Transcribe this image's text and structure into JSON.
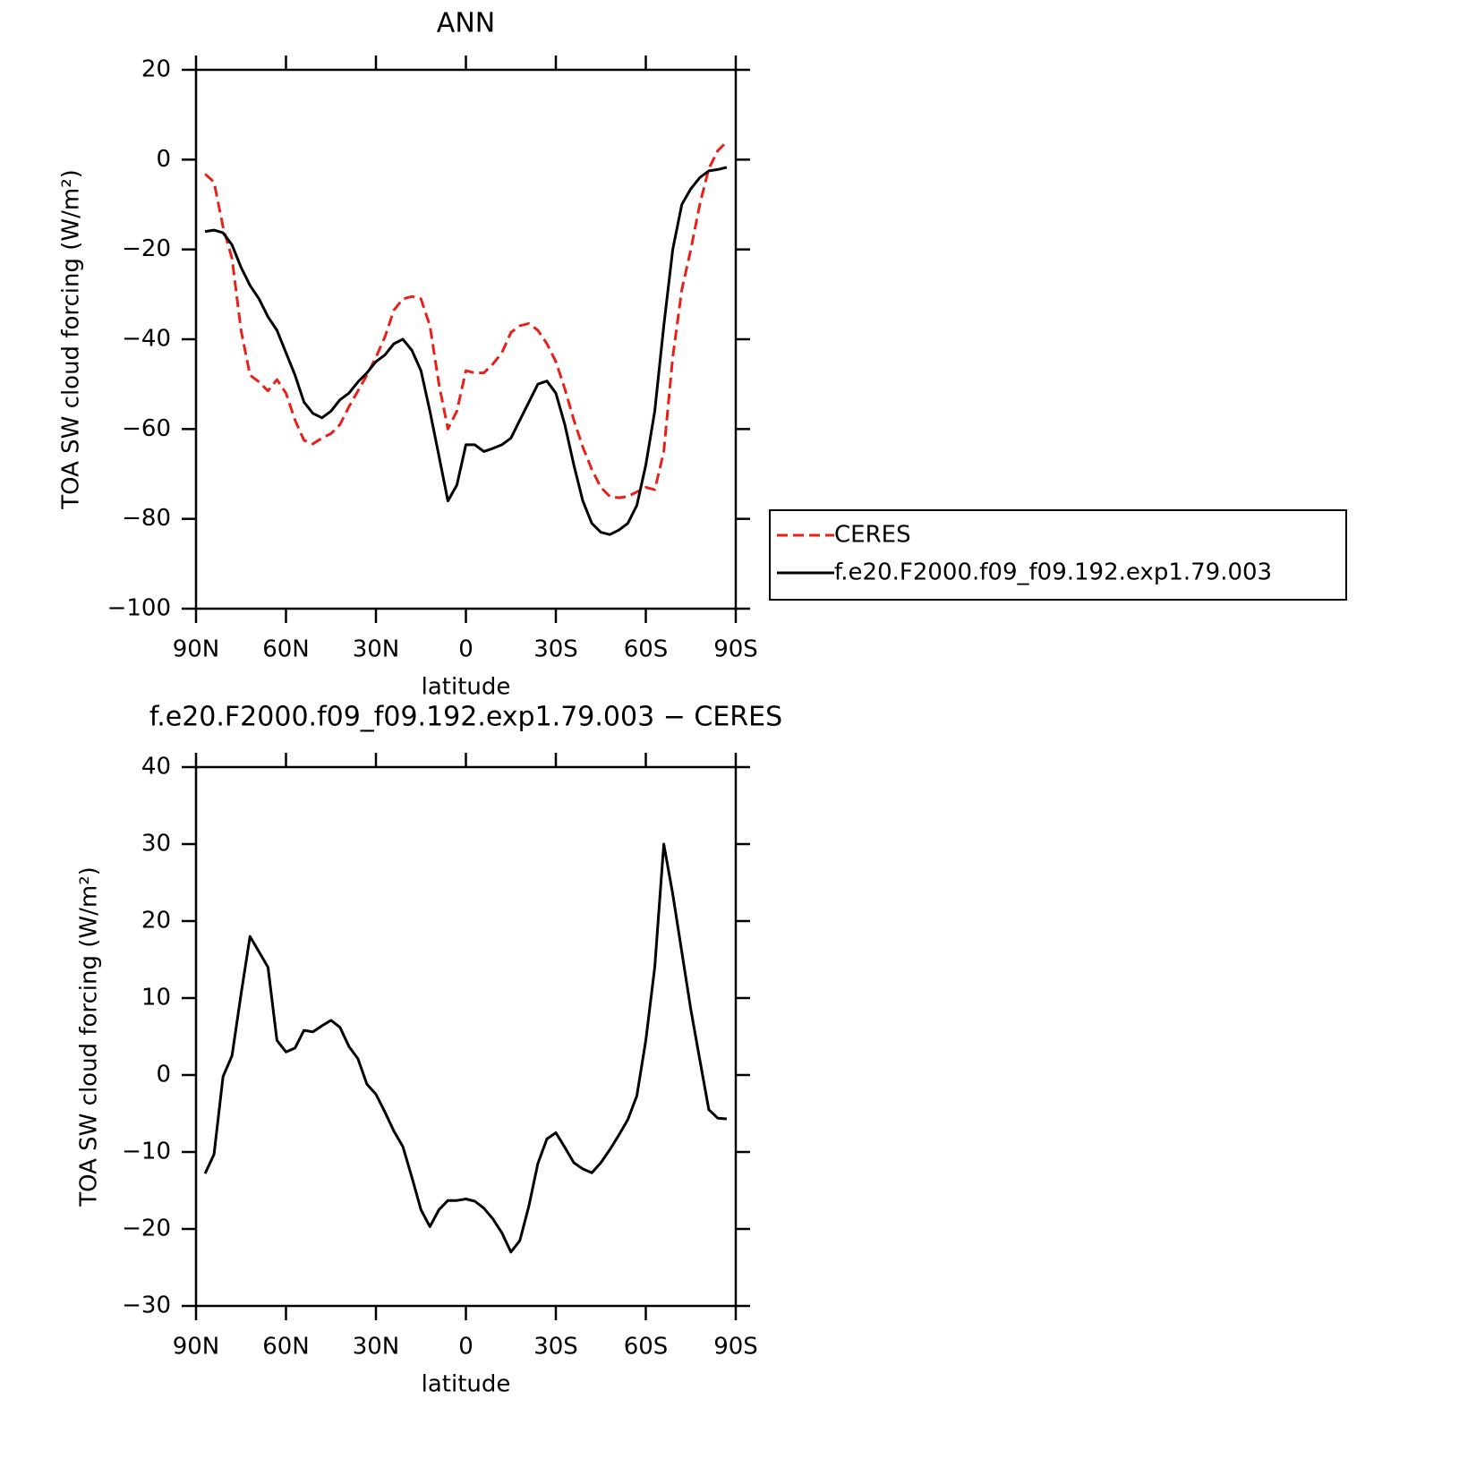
{
  "chart_data": [
    {
      "type": "line",
      "title": "ANN",
      "xlabel": "latitude",
      "ylabel": "TOA SW cloud forcing (W/m²)",
      "x": [
        87,
        84,
        81,
        78,
        75,
        72,
        69,
        66,
        63,
        60,
        57,
        54,
        51,
        48,
        45,
        42,
        39,
        36,
        33,
        30,
        27,
        24,
        21,
        18,
        15,
        12,
        9,
        6,
        3,
        0,
        -3,
        -6,
        -9,
        -12,
        -15,
        -18,
        -21,
        -24,
        -27,
        -30,
        -33,
        -36,
        -39,
        -42,
        -45,
        -48,
        -51,
        -54,
        -57,
        -60,
        -63,
        -66,
        -69,
        -72,
        -75,
        -78,
        -81,
        -84,
        -87
      ],
      "series": [
        {
          "name": "CERES",
          "color": "#e8201a",
          "dashed": true,
          "values": [
            -3.2,
            -5,
            -15,
            -22,
            -38,
            -48,
            -49.5,
            -51.5,
            -49,
            -52,
            -58,
            -62.5,
            -63.3,
            -62,
            -61,
            -59,
            -55,
            -51.5,
            -48,
            -44,
            -39.5,
            -33.5,
            -31,
            -30.5,
            -31,
            -37,
            -50,
            -60,
            -56,
            -47,
            -47.5,
            -47.5,
            -45.5,
            -43,
            -38.5,
            -37,
            -36.5,
            -38,
            -41,
            -45,
            -51,
            -58,
            -64,
            -69,
            -73,
            -75,
            -75.3,
            -75,
            -74,
            -73,
            -73.5,
            -65,
            -44,
            -29,
            -20,
            -10,
            -2,
            2,
            4
          ]
        },
        {
          "name": "f.e20.F2000.f09_f09.192.exp1.79.003",
          "color": "#000000",
          "dashed": false,
          "values": [
            -16,
            -15.7,
            -16.3,
            -19,
            -24,
            -28,
            -31,
            -35,
            -38,
            -43,
            -48,
            -54,
            -56.5,
            -57.5,
            -56,
            -53.5,
            -52,
            -49.5,
            -47.5,
            -45,
            -43.5,
            -41,
            -40,
            -42.5,
            -47,
            -56,
            -66,
            -76,
            -72.5,
            -63.5,
            -63.5,
            -65,
            -64.3,
            -63.5,
            -62,
            -58,
            -54,
            -50,
            -49.3,
            -52,
            -59,
            -68,
            -76,
            -81,
            -83,
            -83.5,
            -82.5,
            -81,
            -77,
            -68,
            -56,
            -37,
            -20,
            -10,
            -6.5,
            -4,
            -2.5,
            -2.2,
            -1.7
          ]
        }
      ],
      "xlim": [
        90,
        -90
      ],
      "xticks": [
        {
          "value": 90,
          "label": "90N"
        },
        {
          "value": 60,
          "label": "60N"
        },
        {
          "value": 30,
          "label": "30N"
        },
        0,
        {
          "value": -30,
          "label": "30S"
        },
        {
          "value": -60,
          "label": "60S"
        },
        {
          "value": -90,
          "label": "90S"
        }
      ],
      "ylim": [
        -100,
        20
      ],
      "yticks": [
        {
          "value": -100,
          "label": "−100"
        },
        {
          "value": -80,
          "label": "−80"
        },
        {
          "value": -60,
          "label": "−60"
        },
        {
          "value": -40,
          "label": "−40"
        },
        {
          "value": -20,
          "label": "−20"
        },
        0,
        20
      ],
      "legend": "right"
    },
    {
      "type": "line",
      "title": "f.e20.F2000.f09_f09.192.exp1.79.003 − CERES",
      "xlabel": "latitude",
      "ylabel": "TOA SW cloud forcing (W/m²)",
      "x": [
        87,
        84,
        81,
        78,
        75,
        72,
        69,
        66,
        63,
        60,
        57,
        54,
        51,
        48,
        45,
        42,
        39,
        36,
        33,
        30,
        27,
        24,
        21,
        18,
        15,
        12,
        9,
        6,
        3,
        0,
        -3,
        -6,
        -9,
        -12,
        -15,
        -18,
        -21,
        -24,
        -27,
        -30,
        -33,
        -36,
        -39,
        -42,
        -45,
        -48,
        -51,
        -54,
        -57,
        -60,
        -63,
        -66,
        -69,
        -72,
        -75,
        -78,
        -81,
        -84,
        -87
      ],
      "values": [
        -12.8,
        -10.3,
        -0.2,
        2.5,
        10.5,
        18,
        16,
        14,
        4.5,
        3,
        3.5,
        5.8,
        5.6,
        6.4,
        7.1,
        6.2,
        3.7,
        2.1,
        -1.2,
        -2.5,
        -4.8,
        -7.3,
        -9.3,
        -13.3,
        -17.5,
        -19.7,
        -17.5,
        -16.3,
        -16.3,
        -16.1,
        -16.4,
        -17.3,
        -18.7,
        -20.5,
        -23,
        -21.5,
        -17,
        -11.5,
        -8.3,
        -7.5,
        -9.4,
        -11.4,
        -12.2,
        -12.7,
        -11.4,
        -9.7,
        -7.8,
        -5.8,
        -2.7,
        4.5,
        14,
        30,
        23.5,
        16,
        8.5,
        2,
        -4.5,
        -5.6,
        -5.7
      ],
      "color": "#000000",
      "xlim": [
        90,
        -90
      ],
      "xticks": [
        {
          "value": 90,
          "label": "90N"
        },
        {
          "value": 60,
          "label": "60N"
        },
        {
          "value": 30,
          "label": "30N"
        },
        0,
        {
          "value": -30,
          "label": "30S"
        },
        {
          "value": -60,
          "label": "60S"
        },
        {
          "value": -90,
          "label": "90S"
        }
      ],
      "ylim": [
        -30,
        40
      ],
      "yticks": [
        {
          "value": -30,
          "label": "−30"
        },
        {
          "value": -20,
          "label": "−20"
        },
        {
          "value": -10,
          "label": "−10"
        },
        0,
        10,
        20,
        30,
        40
      ]
    }
  ]
}
